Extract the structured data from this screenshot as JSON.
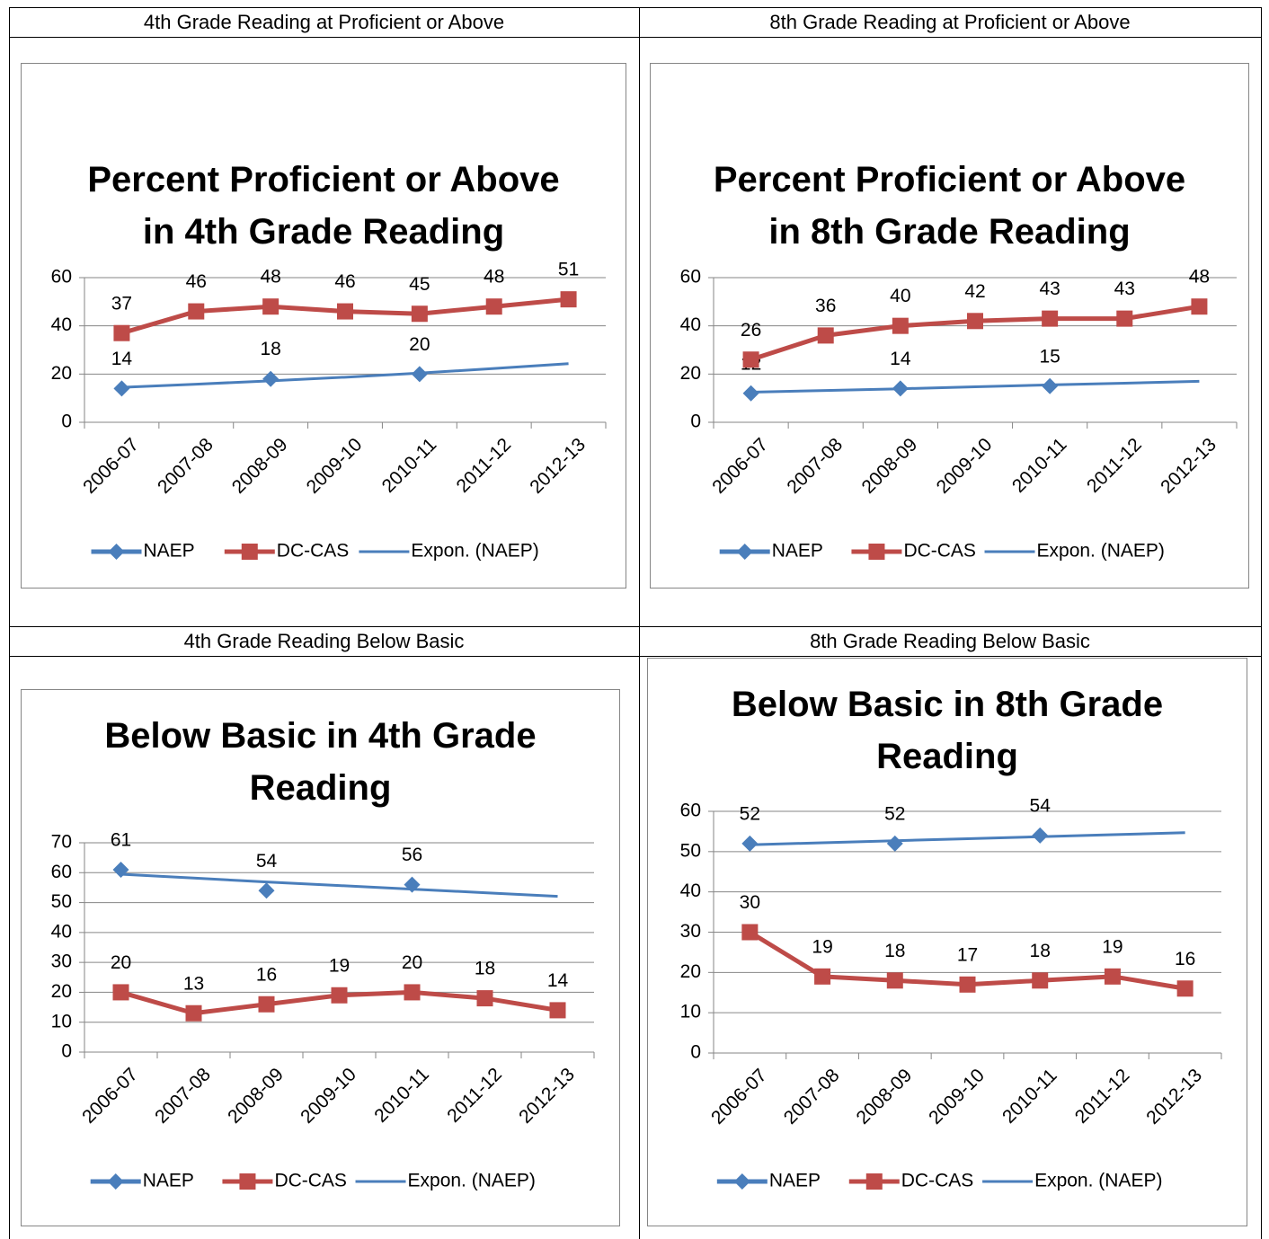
{
  "headers": [
    "4th Grade Reading at Proficient or Above",
    "8th Grade Reading at Proficient or Above",
    "4th Grade Reading Below Basic",
    "8th Grade Reading Below Basic"
  ],
  "chart_data": [
    {
      "type": "line",
      "title": "Percent Proficient or Above in 4th Grade Reading",
      "categories": [
        "2006-07",
        "2007-08",
        "2008-09",
        "2009-10",
        "2010-11",
        "2011-12",
        "2012-13"
      ],
      "ylim": [
        0,
        60
      ],
      "yticks": [
        0,
        20,
        40,
        60
      ],
      "grid": true,
      "series": [
        {
          "name": "NAEP",
          "color": "#4a7ebb",
          "marker": "diamond",
          "values": [
            14,
            null,
            18,
            null,
            20,
            null,
            null
          ]
        },
        {
          "name": "DC-CAS",
          "color": "#be4b48",
          "marker": "square",
          "values": [
            37,
            46,
            48,
            46,
            45,
            48,
            51
          ]
        },
        {
          "name": "Expon. (NAEP)",
          "color": "#4a7ebb",
          "values": [
            14.5,
            15.8,
            17.2,
            18.7,
            20.4,
            22.3,
            24.3
          ]
        }
      ]
    },
    {
      "type": "line",
      "title": "Percent Proficient or Above in 8th Grade Reading",
      "categories": [
        "2006-07",
        "2007-08",
        "2008-09",
        "2009-10",
        "2010-11",
        "2011-12",
        "2012-13"
      ],
      "ylim": [
        0,
        60
      ],
      "yticks": [
        0,
        20,
        40,
        60
      ],
      "grid": true,
      "series": [
        {
          "name": "NAEP",
          "color": "#4a7ebb",
          "marker": "diamond",
          "values": [
            12,
            null,
            14,
            null,
            15,
            null,
            null
          ]
        },
        {
          "name": "DC-CAS",
          "color": "#be4b48",
          "marker": "square",
          "values": [
            26,
            36,
            40,
            42,
            43,
            43,
            48
          ]
        },
        {
          "name": "Expon. (NAEP)",
          "color": "#4a7ebb",
          "values": [
            12.5,
            13.2,
            13.9,
            14.7,
            15.5,
            16.2,
            17
          ]
        }
      ]
    },
    {
      "type": "line",
      "title": "Below Basic in 4th Grade Reading",
      "categories": [
        "2006-07",
        "2007-08",
        "2008-09",
        "2009-10",
        "2010-11",
        "2011-12",
        "2012-13"
      ],
      "ylim": [
        0,
        70
      ],
      "yticks": [
        0,
        10,
        20,
        30,
        40,
        50,
        60,
        70
      ],
      "grid": true,
      "series": [
        {
          "name": "NAEP",
          "color": "#4a7ebb",
          "marker": "diamond",
          "values": [
            61,
            null,
            54,
            null,
            56,
            null,
            null
          ]
        },
        {
          "name": "DC-CAS",
          "color": "#be4b48",
          "marker": "square",
          "values": [
            20,
            13,
            16,
            19,
            20,
            18,
            14
          ]
        },
        {
          "name": "Expon. (NAEP)",
          "color": "#4a7ebb",
          "values": [
            59.5,
            58.2,
            56.9,
            55.7,
            54.5,
            53.3,
            52.1
          ]
        }
      ]
    },
    {
      "type": "line",
      "title": "Below Basic in 8th Grade Reading",
      "categories": [
        "2006-07",
        "2007-08",
        "2008-09",
        "2009-10",
        "2010-11",
        "2011-12",
        "2012-13"
      ],
      "ylim": [
        0,
        60
      ],
      "yticks": [
        0,
        10,
        20,
        30,
        40,
        50,
        60
      ],
      "grid": true,
      "series": [
        {
          "name": "NAEP",
          "color": "#4a7ebb",
          "marker": "diamond",
          "values": [
            52,
            null,
            52,
            null,
            54,
            null,
            null
          ]
        },
        {
          "name": "DC-CAS",
          "color": "#be4b48",
          "marker": "square",
          "values": [
            30,
            19,
            18,
            17,
            18,
            19,
            16
          ]
        },
        {
          "name": "Expon. (NAEP)",
          "color": "#4a7ebb",
          "values": [
            51.7,
            52.2,
            52.7,
            53.2,
            53.7,
            54.2,
            54.7
          ]
        }
      ]
    }
  ]
}
